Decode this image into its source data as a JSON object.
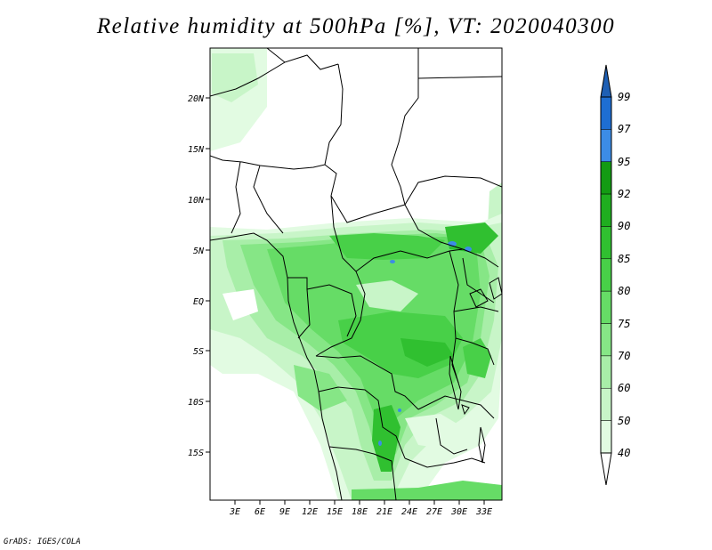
{
  "title": "Relative humidity at 500hPa [%], VT: 2020040300",
  "credit": "GrADS: IGES/COLA",
  "map": {
    "lat_labels": [
      "20N",
      "15N",
      "10N",
      "5N",
      "EQ",
      "5S",
      "10S",
      "15S"
    ],
    "lon_labels": [
      "3E",
      "6E",
      "9E",
      "12E",
      "15E",
      "18E",
      "21E",
      "24E",
      "27E",
      "30E",
      "33E"
    ]
  },
  "colorbar": {
    "levels": [
      "99",
      "97",
      "95",
      "92",
      "90",
      "85",
      "80",
      "75",
      "70",
      "60",
      "50",
      "40"
    ],
    "colors": [
      "#1e6ed2",
      "#3c8ce6",
      "#139b13",
      "#1fae1f",
      "#30c030",
      "#48d048",
      "#66dc66",
      "#86e686",
      "#a8eea8",
      "#c8f5c8",
      "#e2fbe2"
    ],
    "top_color": "#1e5fb4",
    "bottom_color": "#ffffff"
  }
}
